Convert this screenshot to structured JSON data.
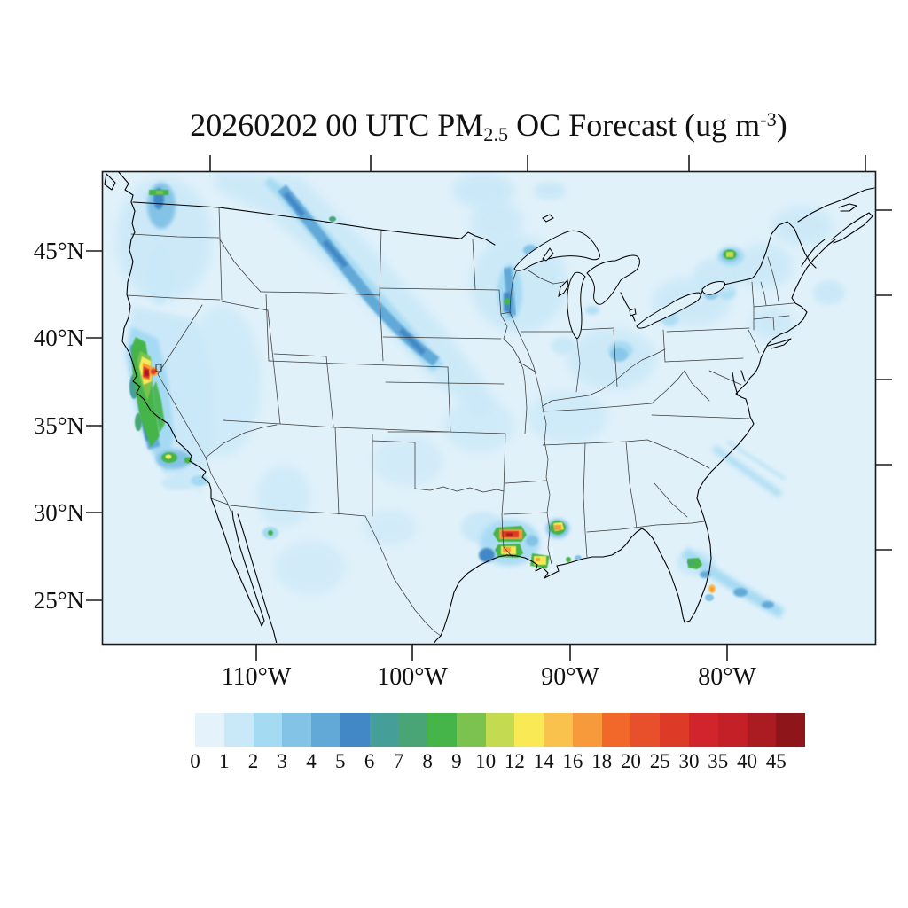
{
  "chart_data": {
    "type": "heatmap",
    "title": "20260202 00 UTC PM2.5 OC Forecast (ug m-3)",
    "title_parts": {
      "text_before_sub": "20260202 00 UTC PM",
      "subscript": "2.5",
      "text_middle": " OC Forecast (ug m",
      "superscript": "-3",
      "text_after": ")"
    },
    "units": "ug m-3",
    "region": "Continental United States",
    "lat_ticks": [
      "45°N",
      "40°N",
      "35°N",
      "30°N",
      "25°N"
    ],
    "lat_tick_values": [
      45,
      40,
      35,
      30,
      25
    ],
    "lon_ticks": [
      "110°W",
      "100°W",
      "90°W",
      "80°W"
    ],
    "lon_tick_values": [
      -110,
      -100,
      -90,
      -80
    ],
    "levels": [
      "0",
      "1",
      "2",
      "3",
      "4",
      "5",
      "6",
      "7",
      "8",
      "9",
      "10",
      "12",
      "14",
      "16",
      "18",
      "20",
      "25",
      "30",
      "35",
      "40",
      "45"
    ],
    "palette": [
      "#e3f2fb",
      "#c9e8f8",
      "#a5daf3",
      "#83c3e6",
      "#62a9d8",
      "#4288c6",
      "#469e98",
      "#4aa576",
      "#45b549",
      "#7cc24f",
      "#c4da51",
      "#f9e955",
      "#f9c24c",
      "#f79a3b",
      "#f1682a",
      "#e84f2b",
      "#dd3a28",
      "#d2242c",
      "#c42027",
      "#aa1c22",
      "#8e161b"
    ],
    "background_level_color": "#e0f1fa",
    "legend_position": "bottom",
    "grid": false,
    "features": [
      {
        "name": "pacific-northwest-diagonal-plume",
        "approx_peak_level": "5-6"
      },
      {
        "name": "seattle-hotspot",
        "approx_peak_level": "8-9"
      },
      {
        "name": "california-central-valley-plume",
        "approx_peak_level": "45+"
      },
      {
        "name": "southern-california-hotspot",
        "approx_peak_level": "12-14"
      },
      {
        "name": "upper-midwest-mississippi-plume",
        "approx_peak_level": "8-9"
      },
      {
        "name": "houston-texas-hotspots",
        "approx_peak_level": "30-35"
      },
      {
        "name": "new-orleans-hotspot",
        "approx_peak_level": "12-14"
      },
      {
        "name": "mississippi-alabama-hotspot",
        "approx_peak_level": "16-18"
      },
      {
        "name": "montreal-hotspot",
        "approx_peak_level": "10-12"
      },
      {
        "name": "florida-east-coast-hotspots",
        "approx_peak_level": "16-18"
      },
      {
        "name": "new-mexico-spot",
        "approx_peak_level": "8-9"
      }
    ]
  }
}
